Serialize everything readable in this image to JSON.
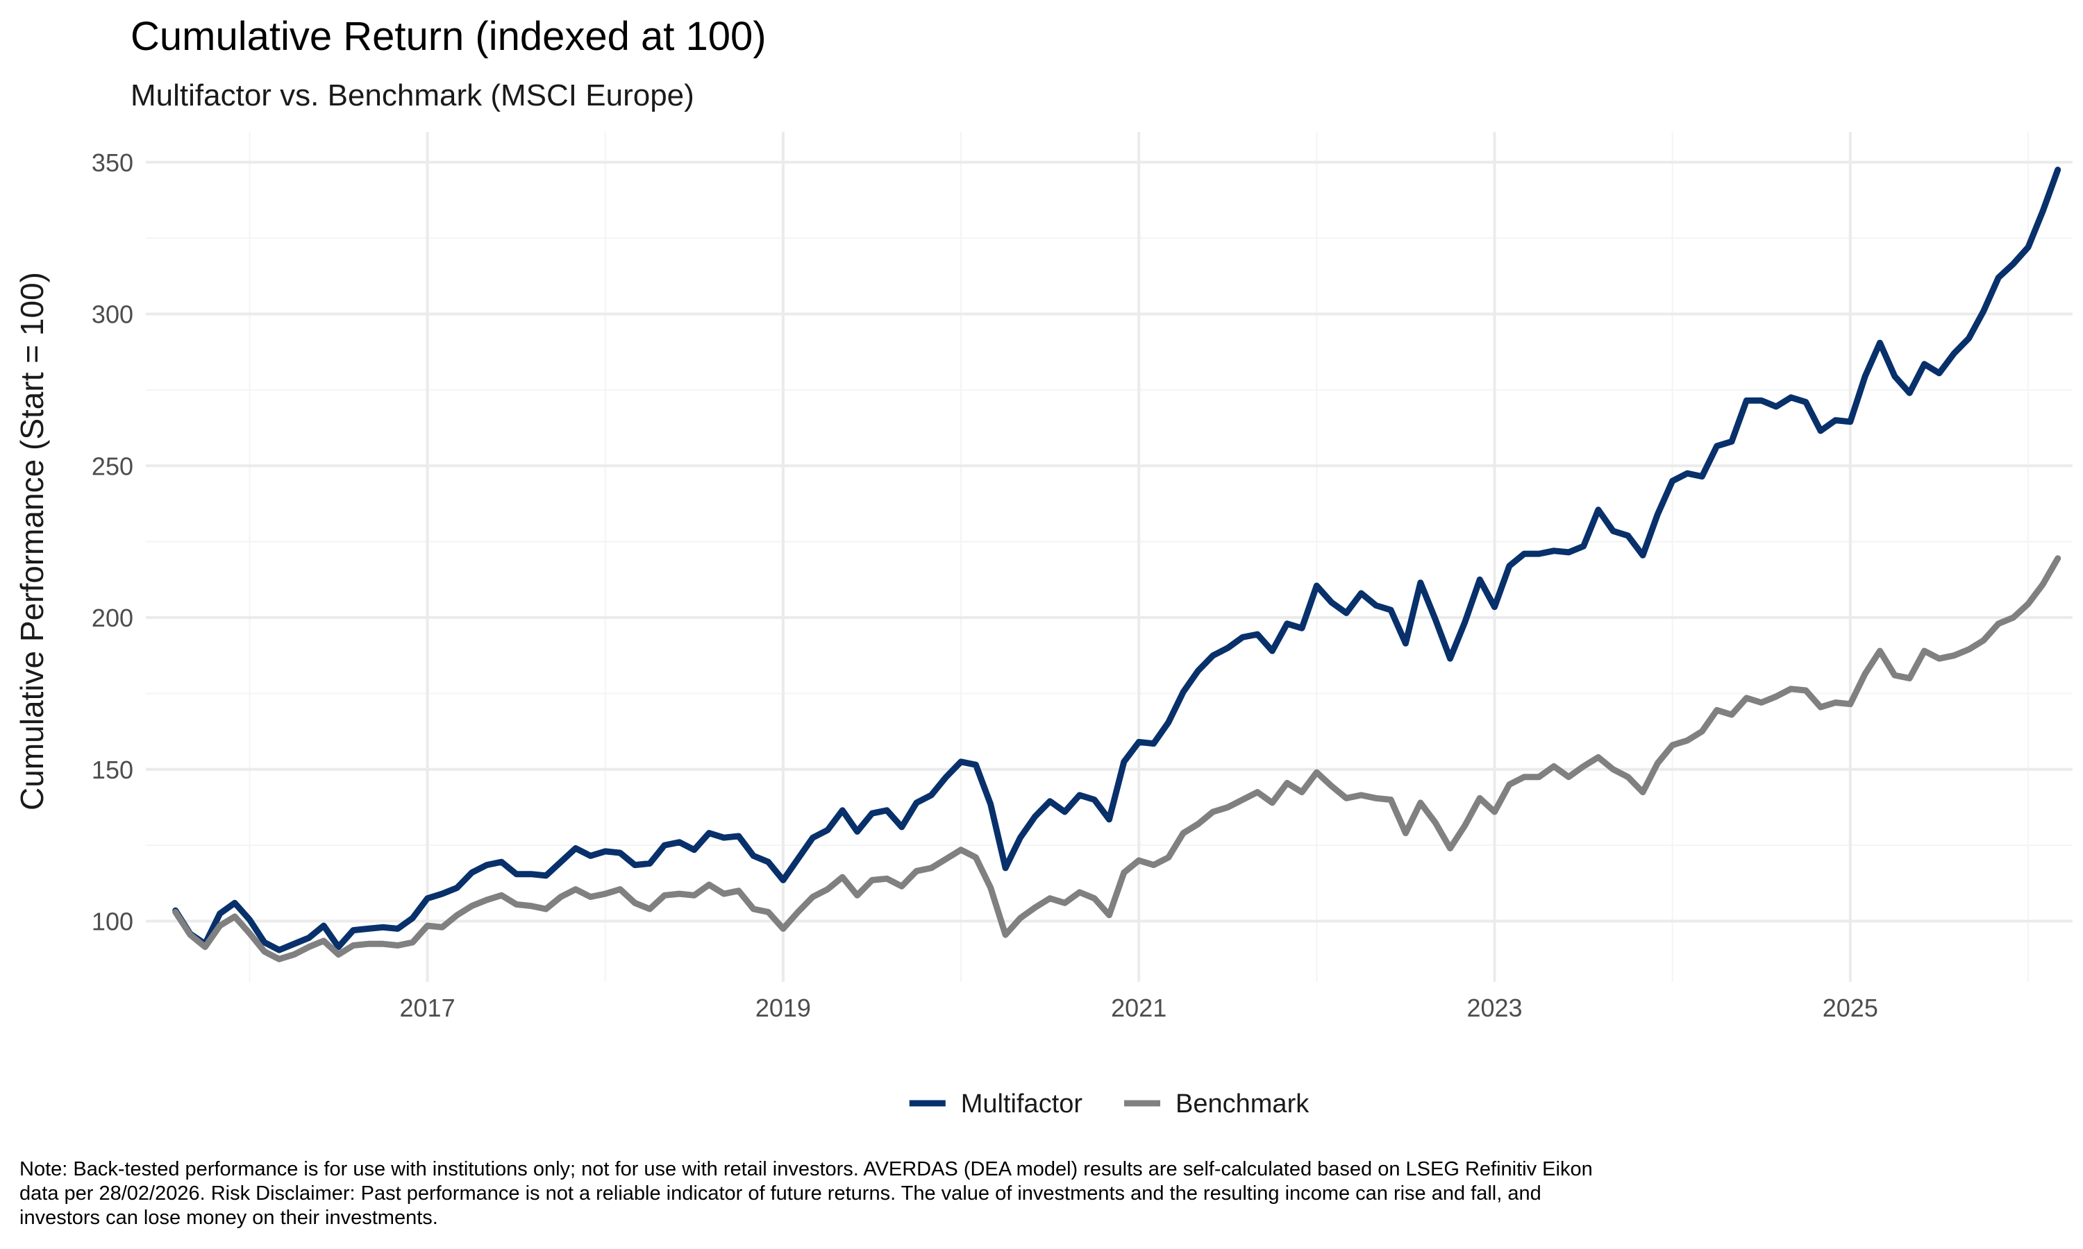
{
  "chart_data": {
    "type": "line",
    "title": "Cumulative Return (indexed at 100)",
    "subtitle": "Multifactor vs. Benchmark (MSCI Europe)",
    "xlabel": "",
    "ylabel": "Cumulative Performance (Start = 100)",
    "x_start": "2015-08",
    "x_end": "2026-02",
    "x_frequency": "monthly",
    "x_ticks": [
      "2017",
      "2019",
      "2021",
      "2023",
      "2025"
    ],
    "ylim": [
      80,
      360
    ],
    "y_ticks": [
      100,
      150,
      200,
      250,
      300,
      350
    ],
    "grid": true,
    "legend_position": "bottom",
    "series": [
      {
        "name": "Multifactor",
        "color": "#08306b",
        "values": [
          103.5,
          95.8,
          92.5,
          102.5,
          106,
          100.5,
          93,
          90.5,
          92.5,
          94.5,
          98.5,
          91.5,
          97,
          97.5,
          98,
          97.5,
          101,
          107.5,
          109,
          111,
          116,
          118.5,
          119.5,
          115.5,
          115.5,
          115,
          119.5,
          124,
          121.5,
          123,
          122.5,
          118.5,
          119,
          125,
          126,
          123.5,
          129,
          127.5,
          128,
          121.5,
          119.5,
          113.5,
          120.5,
          127.5,
          130,
          136.5,
          129.5,
          135.5,
          136.5,
          131,
          139,
          141.5,
          147.5,
          152.5,
          151.5,
          138.5,
          117.5,
          127.5,
          134.5,
          139.5,
          136,
          141.5,
          140,
          133.5,
          152.5,
          159,
          158.5,
          165.5,
          175.5,
          182.5,
          187.5,
          190,
          193.5,
          194.5,
          189,
          198,
          196.5,
          210.5,
          205,
          201.5,
          208,
          204,
          202.5,
          191.5,
          211.5,
          199.5,
          186.5,
          198.5,
          212.5,
          203.5,
          217,
          221,
          221,
          222,
          221.5,
          223.5,
          235.5,
          228.5,
          227,
          220.5,
          234,
          245,
          247.5,
          246.5,
          256.5,
          258,
          271.5,
          271.5,
          269.5,
          272.5,
          271,
          261.5,
          265,
          264.5,
          279.5,
          290.5,
          279.5,
          274,
          283.5,
          280.5,
          287,
          292,
          301,
          312,
          316.5,
          322,
          334,
          347.5
        ]
      },
      {
        "name": "Benchmark",
        "color": "#808080",
        "values": [
          103,
          95.5,
          91.5,
          98.5,
          101.5,
          96,
          90,
          87.5,
          89,
          91.5,
          93.5,
          89,
          92,
          92.5,
          92.5,
          92,
          93,
          98.5,
          98,
          102,
          105,
          107,
          108.5,
          105.5,
          105,
          104,
          108,
          110.5,
          108,
          109,
          110.5,
          106,
          104,
          108.5,
          109,
          108.5,
          112,
          109,
          110,
          104,
          103,
          97.5,
          103,
          108,
          110.5,
          114.5,
          108.5,
          113.5,
          114,
          111.5,
          116.5,
          117.5,
          120.5,
          123.5,
          121,
          111,
          95.5,
          101,
          104.5,
          107.5,
          106,
          109.5,
          107.5,
          102,
          116,
          120,
          118.5,
          121,
          129,
          132,
          136,
          137.5,
          140,
          142.5,
          139,
          145.5,
          142.5,
          149,
          144.5,
          140.5,
          141.5,
          140.5,
          140,
          129,
          139,
          132.5,
          124,
          131.5,
          140.5,
          136,
          145,
          147.5,
          147.5,
          151,
          147.5,
          151,
          154,
          150,
          147.5,
          142.5,
          152,
          158,
          159.5,
          162.5,
          169.5,
          168,
          173.5,
          172,
          174,
          176.5,
          176,
          170.5,
          172,
          171.5,
          181.5,
          189,
          181,
          180,
          189,
          186.5,
          187.5,
          189.5,
          192.5,
          198,
          200,
          204.5,
          211,
          219.5
        ]
      }
    ]
  },
  "note": "Note: Back-tested performance is for use with institutions only; not for use with retail investors. AVERDAS (DEA model) results are self-calculated based on LSEG Refinitiv Eikon data per 28/02/2026. Risk Disclaimer: Past performance is not a reliable indicator of future returns. The value of investments and the resulting income can rise and fall, and investors can lose money on their investments."
}
